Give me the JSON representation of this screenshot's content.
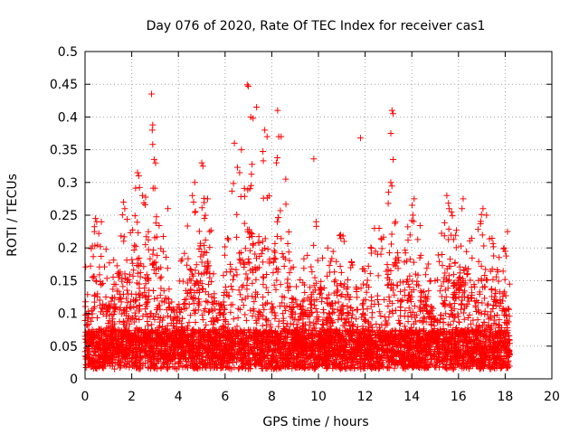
{
  "chart_data": {
    "type": "scatter",
    "title": "Day 076 of 2020, Rate Of TEC Index for receiver cas1",
    "xlabel": "GPS time / hours",
    "ylabel": "ROTI / TECUs",
    "xlim": [
      0,
      20
    ],
    "ylim": [
      0,
      0.5
    ],
    "x_ticks": [
      "0",
      "2",
      "4",
      "6",
      "8",
      "10",
      "12",
      "14",
      "16",
      "18",
      "20"
    ],
    "y_ticks": [
      "0",
      "0.05",
      "0.1",
      "0.15",
      "0.2",
      "0.25",
      "0.3",
      "0.35",
      "0.4",
      "0.45",
      "0.5"
    ],
    "grid": true,
    "marker": "+",
    "color": "#ff0000",
    "data_x_range": [
      0,
      18.2
    ],
    "series": [
      {
        "points": [
          [
            2.85,
            0.435
          ],
          [
            2.9,
            0.388
          ],
          [
            2.88,
            0.38
          ],
          [
            2.9,
            0.358
          ],
          [
            6.95,
            0.449
          ],
          [
            7.0,
            0.447
          ],
          [
            7.35,
            0.415
          ],
          [
            7.1,
            0.4
          ],
          [
            7.2,
            0.398
          ],
          [
            8.25,
            0.41
          ],
          [
            8.3,
            0.37
          ],
          [
            8.4,
            0.37
          ],
          [
            7.7,
            0.38
          ],
          [
            7.8,
            0.37
          ],
          [
            13.15,
            0.41
          ],
          [
            13.2,
            0.405
          ],
          [
            13.1,
            0.375
          ],
          [
            13.2,
            0.335
          ],
          [
            11.8,
            0.368
          ],
          [
            9.8,
            0.336
          ],
          [
            6.4,
            0.36
          ],
          [
            6.7,
            0.35
          ],
          [
            2.25,
            0.315
          ],
          [
            2.3,
            0.31
          ],
          [
            5.0,
            0.33
          ],
          [
            5.05,
            0.325
          ],
          [
            4.7,
            0.3
          ],
          [
            8.2,
            0.33
          ],
          [
            8.6,
            0.305
          ],
          [
            13.1,
            0.3
          ],
          [
            13.0,
            0.285
          ],
          [
            0.45,
            0.245
          ],
          [
            0.5,
            0.24
          ],
          [
            0.7,
            0.24
          ],
          [
            0.4,
            0.225
          ],
          [
            0.42,
            0.203
          ],
          [
            1.65,
            0.27
          ],
          [
            1.7,
            0.26
          ],
          [
            3.55,
            0.26
          ],
          [
            4.6,
            0.28
          ],
          [
            4.65,
            0.27
          ],
          [
            15.5,
            0.28
          ],
          [
            15.6,
            0.26
          ],
          [
            15.7,
            0.255
          ],
          [
            16.2,
            0.275
          ],
          [
            16.15,
            0.26
          ],
          [
            17.05,
            0.26
          ],
          [
            17.2,
            0.25
          ],
          [
            17.95,
            0.2
          ],
          [
            18.0,
            0.195
          ],
          [
            18.1,
            0.225
          ],
          [
            14.1,
            0.275
          ],
          [
            14.05,
            0.25
          ],
          [
            12.4,
            0.23
          ],
          [
            12.6,
            0.23
          ],
          [
            13.3,
            0.24
          ],
          [
            10.95,
            0.22
          ],
          [
            11.1,
            0.21
          ],
          [
            9.9,
            0.24
          ],
          [
            10.4,
            0.2
          ]
        ]
      }
    ]
  }
}
